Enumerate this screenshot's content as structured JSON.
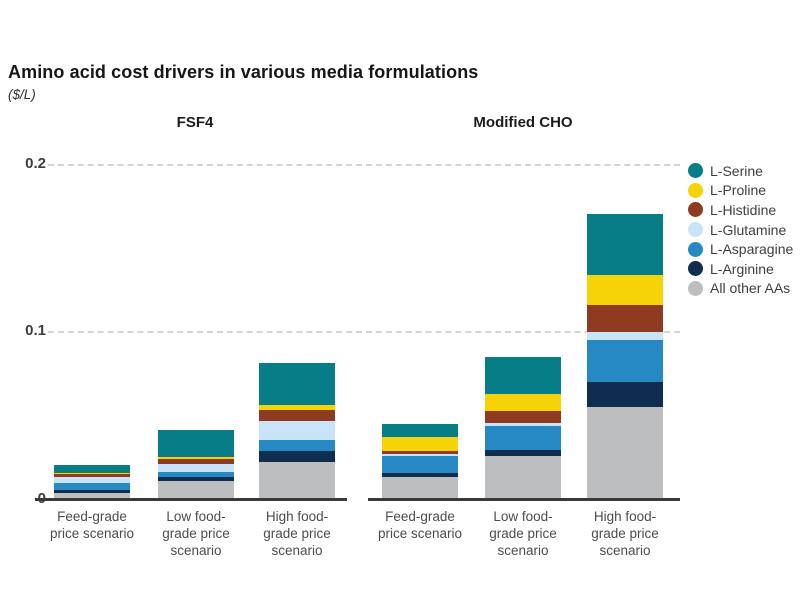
{
  "header": {
    "title": "Amino acid cost drivers in various media formulations",
    "subtitle": "($/L)"
  },
  "chart_data": {
    "type": "bar",
    "stacked": true,
    "title": "Amino acid cost drivers in various media formulations",
    "subtitle_units": "($/L)",
    "grid": "horizontal-dashed",
    "legend_position": "right",
    "ylim": [
      0,
      0.2
    ],
    "yticks": [
      0,
      0.1,
      0.2
    ],
    "ytick_labels": [
      "0",
      "0.1",
      "0.2"
    ],
    "groups": [
      {
        "label": "FSF4",
        "categories": [
          "Feed-grade\nprice scenario",
          "Low food-\ngrade price\nscenario",
          "High food-\ngrade price\nscenario"
        ]
      },
      {
        "label": "Modified CHO",
        "categories": [
          "Feed-grade\nprice scenario",
          "Low food-\ngrade price\nscenario",
          "High food-\ngrade price\nscenario"
        ]
      }
    ],
    "stack_order_bottom_to_top": [
      "All other AAs",
      "L-Arginine",
      "L-Asparagine",
      "L-Glutamine",
      "L-Histidine",
      "L-Proline",
      "L-Serine"
    ],
    "series": [
      {
        "name": "L-Serine",
        "color": "#077d87",
        "values": [
          [
            0.005,
            0.0165,
            0.0255
          ],
          [
            0.008,
            0.0225,
            0.0365
          ]
        ]
      },
      {
        "name": "L-Proline",
        "color": "#f5d306",
        "values": [
          [
            0.0005,
            0.001,
            0.0025
          ],
          [
            0.008,
            0.01,
            0.018
          ]
        ]
      },
      {
        "name": "L-Histidine",
        "color": "#8e3b22",
        "values": [
          [
            0.0015,
            0.003,
            0.007
          ],
          [
            0.002,
            0.007,
            0.016
          ]
        ]
      },
      {
        "name": "L-Glutamine",
        "color": "#c9e3f8",
        "values": [
          [
            0.004,
            0.0045,
            0.011
          ],
          [
            0.0015,
            0.002,
            0.005
          ]
        ]
      },
      {
        "name": "L-Asparagine",
        "color": "#2789c4",
        "values": [
          [
            0.004,
            0.003,
            0.007
          ],
          [
            0.01,
            0.014,
            0.025
          ]
        ]
      },
      {
        "name": "L-Arginine",
        "color": "#0f2d4f",
        "values": [
          [
            0.002,
            0.0025,
            0.0065
          ],
          [
            0.0025,
            0.004,
            0.015
          ]
        ]
      },
      {
        "name": "All other AAs",
        "color": "#bcbec0",
        "values": [
          [
            0.004,
            0.0115,
            0.0225
          ],
          [
            0.0135,
            0.026,
            0.0555
          ]
        ]
      }
    ],
    "totals": {
      "FSF4": [
        0.021,
        0.042,
        0.082
      ],
      "Modified CHO": [
        0.0455,
        0.0855,
        0.171
      ]
    },
    "colors": {
      "axis": "#3a3a3a",
      "gridline": "#d4d4d4",
      "tick_text": "#4d4d4d"
    }
  }
}
